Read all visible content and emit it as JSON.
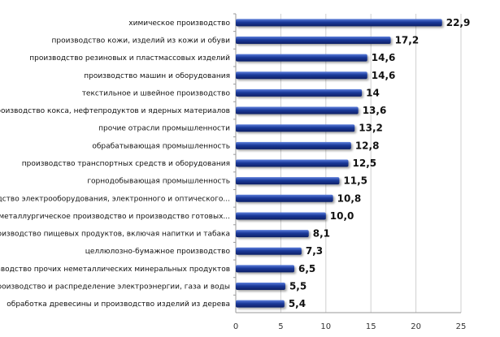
{
  "chart_data": {
    "type": "bar",
    "orientation": "horizontal",
    "title": "",
    "xlabel": "",
    "ylabel": "",
    "xlim": [
      0,
      25
    ],
    "x_ticks": [
      "0",
      "5",
      "10",
      "15",
      "20",
      "25"
    ],
    "grid": true,
    "bar_color": "#1b3a9a",
    "categories": [
      "химическое производство",
      "производство кожи, изделий из кожи и обуви",
      "производство резиновых и пластмассовых изделий",
      "производство машин и оборудования",
      "текстильное и швейное производство",
      "производство кокса, нефтепродуктов и ядерных материалов",
      "прочие отрасли промышленности",
      "обрабатывающая промышленность",
      "производство транспортных средств и оборудования",
      "горнодобывающая промышленность",
      "производство электрооборудования, электронного и оптического...",
      "металлургическое производство и производство готовых...",
      "производство пищевых продуктов, включая напитки и табака",
      "целлюлозно-бумажное производство",
      "производство прочих неметаллических минеральных продуктов",
      "производство и распределение электроэнергии, газа и воды",
      "обработка древесины и производство изделий из дерева"
    ],
    "values": [
      22.9,
      17.2,
      14.6,
      14.6,
      14,
      13.6,
      13.2,
      12.8,
      12.5,
      11.5,
      10.8,
      10.0,
      8.1,
      7.3,
      6.5,
      5.5,
      5.4
    ],
    "value_labels": [
      "22,9",
      "17,2",
      "14,6",
      "14,6",
      "14",
      "13,6",
      "13,2",
      "12,8",
      "12,5",
      "11,5",
      "10,8",
      "10,0",
      "8,1",
      "7,3",
      "6,5",
      "5,5",
      "5,4"
    ]
  }
}
